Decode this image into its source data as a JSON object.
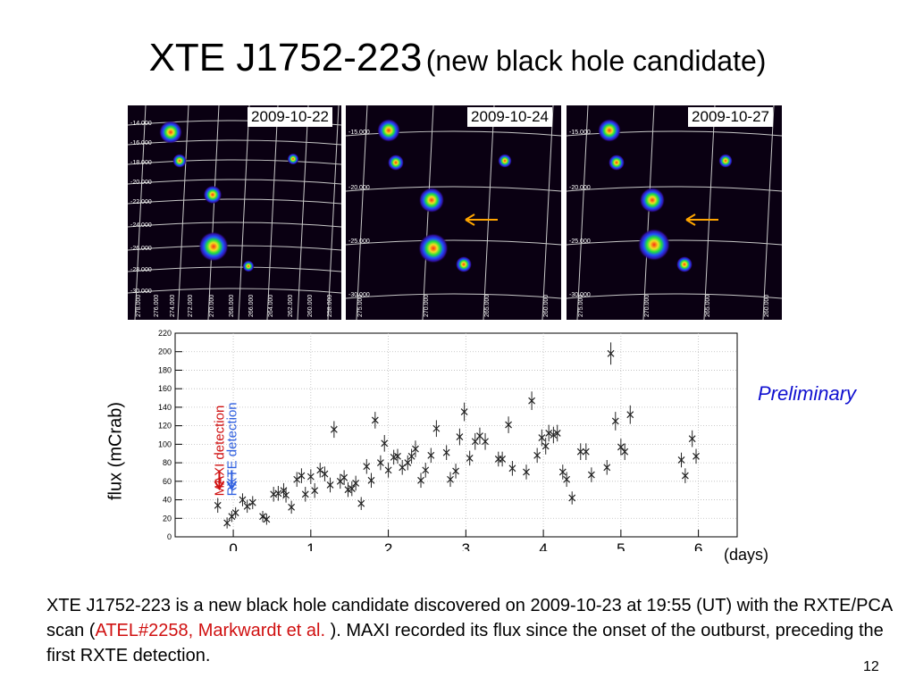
{
  "title": {
    "main": "XTE J1752-223",
    "sub": "(new black hole candidate)"
  },
  "images": [
    {
      "date": "2009-10-22",
      "dec_labels": [
        "-14.000",
        "-16.000",
        "-18.000",
        "-20.000",
        "-22.000",
        "-24.000",
        "-26.000",
        "-28.000",
        "-30.000"
      ],
      "ra_labels": [
        "278.000",
        "276.000",
        "274.000",
        "272.000",
        "270.000",
        "268.000",
        "266.000",
        "264.000",
        "262.000",
        "260.000",
        "258.000"
      ],
      "marker": false
    },
    {
      "date": "2009-10-24",
      "dec_labels": [
        "-15.000",
        "-20.000",
        "-25.000",
        "-30.000"
      ],
      "ra_labels": [
        "275.000",
        "270.000",
        "265.000",
        "260.000"
      ],
      "marker": true
    },
    {
      "date": "2009-10-27",
      "dec_labels": [
        "-15.000",
        "-20.000",
        "-25.000",
        "-30.000"
      ],
      "ra_labels": [
        "275.000",
        "270.000",
        "265.000",
        "260.000"
      ],
      "marker": true
    }
  ],
  "chart_data": {
    "type": "scatter",
    "title": "",
    "xlabel": "(days)",
    "ylabel": "flux (mCrab)",
    "xlim": [
      -0.75,
      6.5
    ],
    "ylim": [
      0,
      220
    ],
    "x_ticks": [
      0,
      1,
      2,
      3,
      4,
      5,
      6
    ],
    "y_ticks": [
      0,
      20,
      40,
      60,
      80,
      100,
      120,
      140,
      160,
      180,
      200,
      220
    ],
    "grid": true,
    "marker": "x",
    "series": [
      {
        "points": [
          [
            -0.2,
            34,
            8
          ],
          [
            -0.08,
            15,
            6
          ],
          [
            -0.02,
            22,
            6
          ],
          [
            0.03,
            26,
            6
          ],
          [
            0.12,
            40,
            7
          ],
          [
            0.18,
            33,
            7
          ],
          [
            0.25,
            37,
            7
          ],
          [
            0.38,
            22,
            6
          ],
          [
            0.43,
            19,
            6
          ],
          [
            0.52,
            46,
            8
          ],
          [
            0.58,
            47,
            8
          ],
          [
            0.65,
            50,
            8
          ],
          [
            0.68,
            45,
            8
          ],
          [
            0.75,
            32,
            7
          ],
          [
            0.82,
            62,
            8
          ],
          [
            0.88,
            66,
            8
          ],
          [
            0.93,
            46,
            8
          ],
          [
            1.0,
            65,
            8
          ],
          [
            1.05,
            50,
            8
          ],
          [
            1.12,
            72,
            8
          ],
          [
            1.18,
            68,
            8
          ],
          [
            1.25,
            56,
            8
          ],
          [
            1.3,
            116,
            9
          ],
          [
            1.38,
            60,
            8
          ],
          [
            1.43,
            64,
            8
          ],
          [
            1.48,
            51,
            8
          ],
          [
            1.53,
            52,
            8
          ],
          [
            1.58,
            58,
            8
          ],
          [
            1.65,
            36,
            7
          ],
          [
            1.72,
            76,
            8
          ],
          [
            1.78,
            61,
            8
          ],
          [
            1.83,
            126,
            9
          ],
          [
            1.9,
            80,
            8
          ],
          [
            1.95,
            101,
            9
          ],
          [
            2.0,
            72,
            8
          ],
          [
            2.07,
            86,
            8
          ],
          [
            2.12,
            87,
            8
          ],
          [
            2.18,
            75,
            8
          ],
          [
            2.25,
            80,
            8
          ],
          [
            2.3,
            87,
            8
          ],
          [
            2.35,
            95,
            9
          ],
          [
            2.42,
            61,
            8
          ],
          [
            2.48,
            72,
            8
          ],
          [
            2.55,
            88,
            8
          ],
          [
            2.62,
            117,
            9
          ],
          [
            2.75,
            91,
            8
          ],
          [
            2.8,
            62,
            8
          ],
          [
            2.87,
            71,
            8
          ],
          [
            2.92,
            108,
            9
          ],
          [
            2.98,
            135,
            10
          ],
          [
            3.05,
            85,
            8
          ],
          [
            3.12,
            103,
            9
          ],
          [
            3.18,
            109,
            9
          ],
          [
            3.25,
            103,
            9
          ],
          [
            3.42,
            84,
            8
          ],
          [
            3.47,
            84,
            8
          ],
          [
            3.55,
            121,
            9
          ],
          [
            3.6,
            74,
            8
          ],
          [
            3.78,
            70,
            8
          ],
          [
            3.85,
            147,
            10
          ],
          [
            3.92,
            88,
            8
          ],
          [
            3.98,
            107,
            9
          ],
          [
            4.03,
            98,
            9
          ],
          [
            4.07,
            112,
            9
          ],
          [
            4.13,
            110,
            9
          ],
          [
            4.18,
            112,
            9
          ],
          [
            4.25,
            70,
            8
          ],
          [
            4.3,
            62,
            8
          ],
          [
            4.37,
            42,
            7
          ],
          [
            4.48,
            92,
            9
          ],
          [
            4.55,
            92,
            9
          ],
          [
            4.62,
            67,
            8
          ],
          [
            4.82,
            75,
            8
          ],
          [
            4.87,
            198,
            12
          ],
          [
            4.93,
            125,
            10
          ],
          [
            5.0,
            97,
            9
          ],
          [
            5.05,
            92,
            9
          ],
          [
            5.12,
            132,
            10
          ],
          [
            5.78,
            83,
            8
          ],
          [
            5.83,
            66,
            8
          ],
          [
            5.92,
            106,
            9
          ],
          [
            5.97,
            87,
            8
          ]
        ]
      }
    ],
    "annotations": [
      {
        "text": "MAXI detection",
        "x": -0.18,
        "color": "#d01010"
      },
      {
        "text": "RXTE detection",
        "x": -0.02,
        "color": "#3060e0"
      }
    ]
  },
  "preliminary": "Preliminary",
  "caption": {
    "part1": "XTE J1752-223 is a new black hole candidate discovered on 2009-10-23 at 19:55 (UT) with the RXTE/PCA scan (",
    "ref": "ATEL#2258, Markwardt et al. ",
    "part2": ").  MAXI recorded its flux since the onset of the outburst, preceding the first RXTE detection."
  },
  "page_number": "12"
}
